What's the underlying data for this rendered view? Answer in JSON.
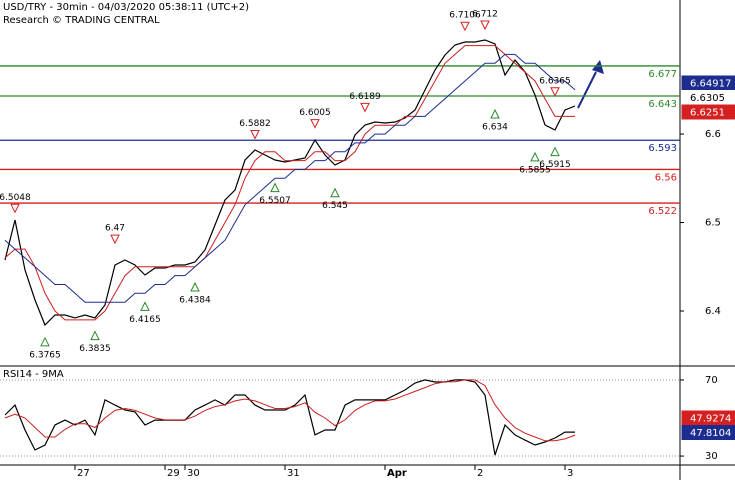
{
  "chart_data": [
    {
      "type": "line",
      "title": "USD/TRY - 30min - 04/03/2020 05:38:11 (UTC+2)",
      "subtitle": "Research © TRADING CENTRAL",
      "ylim": [
        6.339,
        6.7515
      ],
      "yticks": [
        6.4,
        6.5,
        6.6
      ],
      "series": [
        {
          "color": "#000000",
          "values": [
            6.4577,
            6.5029,
            6.4464,
            6.4125,
            6.3842,
            6.3955,
            6.3955,
            6.3922,
            6.3955,
            6.3922,
            6.4068,
            6.452,
            6.4577,
            6.452,
            6.4407,
            6.4486,
            6.4486,
            6.452,
            6.452,
            6.4554,
            6.469,
            6.4972,
            6.5255,
            6.5368,
            6.5707,
            6.582,
            6.5763,
            6.5707,
            6.5684,
            6.5707,
            6.5729,
            6.5933,
            6.5763,
            6.565,
            6.5707,
            6.5989,
            6.6102,
            6.6136,
            6.6125,
            6.6136,
            6.6181,
            6.6272,
            6.6498,
            6.6724,
            6.6893,
            6.7006,
            6.704,
            6.704,
            6.7063,
            6.7018,
            6.6667,
            6.6837,
            6.6701,
            6.6441,
            6.6102,
            6.6046,
            6.6272,
            6.6317
          ]
        },
        {
          "color": "#cc1f1f",
          "values": [
            6.46,
            6.47,
            6.47,
            6.45,
            6.42,
            6.4,
            6.39,
            6.39,
            6.39,
            6.39,
            6.4,
            6.42,
            6.44,
            6.45,
            6.45,
            6.45,
            6.45,
            6.45,
            6.45,
            6.45,
            6.46,
            6.48,
            6.5,
            6.52,
            6.55,
            6.57,
            6.58,
            6.58,
            6.57,
            6.57,
            6.57,
            6.58,
            6.58,
            6.57,
            6.57,
            6.58,
            6.6,
            6.61,
            6.61,
            6.61,
            6.62,
            6.62,
            6.64,
            6.66,
            6.68,
            6.69,
            6.7,
            6.7,
            6.7,
            6.7,
            6.69,
            6.68,
            6.67,
            6.66,
            6.64,
            6.62,
            6.62,
            6.62
          ]
        },
        {
          "color": "#1c2d8f",
          "values": [
            6.48,
            6.47,
            6.46,
            6.45,
            6.44,
            6.43,
            6.43,
            6.42,
            6.41,
            6.41,
            6.41,
            6.41,
            6.41,
            6.42,
            6.42,
            6.43,
            6.43,
            6.44,
            6.44,
            6.45,
            6.46,
            6.47,
            6.48,
            6.5,
            6.52,
            6.53,
            6.54,
            6.55,
            6.55,
            6.56,
            6.56,
            6.57,
            6.57,
            6.58,
            6.58,
            6.59,
            6.59,
            6.6,
            6.6,
            6.61,
            6.61,
            6.62,
            6.62,
            6.63,
            6.64,
            6.65,
            6.66,
            6.67,
            6.68,
            6.68,
            6.69,
            6.69,
            6.68,
            6.68,
            6.67,
            6.66,
            6.66,
            6.65
          ]
        }
      ],
      "levels": [
        {
          "value": 6.677,
          "color": "#2a8a2a"
        },
        {
          "value": 6.643,
          "color": "#2a8a2a"
        },
        {
          "value": 6.593,
          "color": "#1c2d8f"
        },
        {
          "value": 6.56,
          "color": "#d42020"
        },
        {
          "value": 6.522,
          "color": "#d42020"
        }
      ],
      "annotations": [
        {
          "value": 6.5048,
          "at": 1,
          "kind": "high"
        },
        {
          "value": 6.3765,
          "at": 4,
          "kind": "low"
        },
        {
          "value": 6.3835,
          "at": 9,
          "kind": "low"
        },
        {
          "value": 6.47,
          "at": 11,
          "kind": "high"
        },
        {
          "value": 6.4165,
          "at": 14,
          "kind": "low"
        },
        {
          "value": 6.4384,
          "at": 19,
          "kind": "low"
        },
        {
          "value": 6.5882,
          "at": 25,
          "kind": "high"
        },
        {
          "value": 6.5507,
          "at": 27,
          "kind": "low"
        },
        {
          "value": 6.6005,
          "at": 31,
          "kind": "high"
        },
        {
          "value": 6.545,
          "at": 33,
          "kind": "low"
        },
        {
          "value": 6.6189,
          "at": 36,
          "kind": "high"
        },
        {
          "value": 6.7106,
          "at": 46,
          "kind": "high"
        },
        {
          "value": 6.712,
          "at": 48,
          "kind": "high"
        },
        {
          "value": 6.634,
          "at": 49,
          "kind": "low"
        },
        {
          "value": 6.5855,
          "at": 53,
          "kind": "low"
        },
        {
          "value": 6.5915,
          "at": 55,
          "kind": "low"
        },
        {
          "value": 6.6365,
          "at": 55,
          "kind": "high"
        }
      ],
      "badges": [
        {
          "value": 6.64917,
          "color": "#1c2d8f"
        },
        {
          "value": 6.6305,
          "color": "#ffffff"
        },
        {
          "value": 6.6251,
          "color": "#d42020"
        }
      ]
    },
    {
      "type": "line",
      "title": "RSI14 - 9MA",
      "ylim": [
        25.3,
        76.8
      ],
      "yticks": [
        30,
        70
      ],
      "grid": true,
      "categories": [
        null,
        null,
        null,
        null,
        null,
        null,
        null,
        "27",
        null,
        null,
        null,
        null,
        null,
        null,
        null,
        null,
        "29",
        null,
        "30",
        null,
        null,
        null,
        null,
        null,
        null,
        null,
        null,
        null,
        "31",
        null,
        null,
        null,
        null,
        null,
        null,
        null,
        null,
        null,
        "Apr",
        null,
        null,
        null,
        null,
        null,
        null,
        null,
        null,
        "2",
        null,
        null,
        null,
        null,
        null,
        null,
        null,
        null,
        "3",
        null
      ],
      "series": [
        {
          "color": "#000000",
          "values": [
            51.6,
            56.8,
            43.7,
            33.2,
            35.8,
            46.3,
            48.9,
            46.3,
            48.9,
            41.1,
            59.5,
            56.8,
            54.2,
            53.2,
            46.3,
            48.9,
            48.9,
            48.9,
            48.9,
            54.2,
            56.8,
            59.5,
            56.8,
            62.1,
            62.1,
            56.8,
            54.2,
            54.2,
            54.2,
            56.8,
            62.1,
            41.1,
            43.7,
            43.7,
            56.8,
            59.5,
            59.5,
            59.5,
            59.5,
            62.1,
            64.7,
            68.4,
            70,
            68.9,
            68.9,
            70,
            70,
            68.9,
            62.1,
            30.5,
            46.3,
            41.1,
            38.4,
            35.8,
            37.4,
            39.5,
            42.6,
            42.6
          ]
        },
        {
          "color": "#cc1f1f",
          "values": [
            50,
            52,
            50,
            45,
            40,
            40,
            44,
            47,
            47,
            45,
            50,
            54,
            55,
            54,
            52,
            50,
            49,
            49,
            49,
            51,
            54,
            56,
            57,
            59,
            60,
            59,
            57,
            55,
            55,
            56,
            58,
            53,
            50,
            46,
            49,
            54,
            57,
            59,
            59,
            60,
            62,
            64,
            66,
            68,
            69,
            69,
            70,
            70,
            67,
            57,
            50,
            45,
            42,
            40,
            38,
            38,
            39,
            41
          ]
        }
      ],
      "badges": [
        {
          "value": 47.9274,
          "color": "#d42020"
        },
        {
          "value": 47.8104,
          "color": "#1c2d8f"
        }
      ]
    }
  ]
}
